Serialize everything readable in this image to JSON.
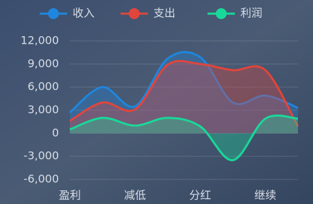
{
  "chart_data": {
    "type": "line",
    "categories": [
      "盈利",
      null,
      "减低",
      null,
      "分红",
      null,
      "继续",
      null
    ],
    "series": [
      {
        "name": "收入",
        "color": "#1f86de",
        "values": [
          2700,
          6000,
          3500,
          9700,
          9900,
          4000,
          4900,
          3300
        ]
      },
      {
        "name": "支出",
        "color": "#e2453c",
        "values": [
          1600,
          4000,
          3100,
          8900,
          9000,
          8200,
          8200,
          900
        ]
      },
      {
        "name": "利润",
        "color": "#19d99a",
        "values": [
          500,
          2000,
          1000,
          2000,
          900,
          -3500,
          1900,
          1900
        ]
      }
    ],
    "ylim": [
      -6000,
      12000
    ],
    "yticks": [
      {
        "value": -6000,
        "label": "-6,000"
      },
      {
        "value": -3000,
        "label": "-3,000"
      },
      0,
      {
        "value": 3000,
        "label": "3,000"
      },
      {
        "value": 6000,
        "label": "6,000"
      },
      {
        "value": 9000,
        "label": "9,000"
      },
      {
        "value": 12000,
        "label": "12,000"
      }
    ],
    "grid": true,
    "area": true,
    "smooth": true,
    "legend": "top"
  }
}
